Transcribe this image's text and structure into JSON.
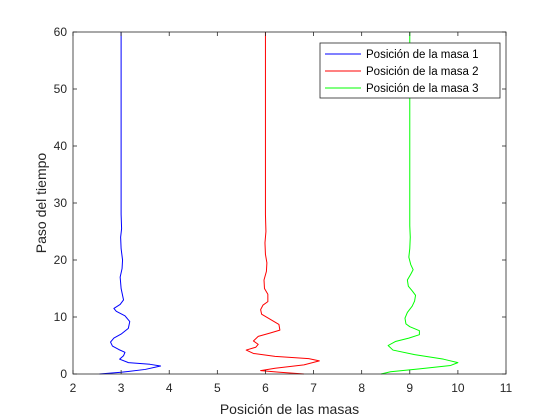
{
  "chart_data": {
    "type": "line",
    "xlabel": "Posición de las masas",
    "ylabel": "Paso del tiempo",
    "xlim": [
      2,
      11
    ],
    "ylim": [
      0,
      60
    ],
    "xticks": [
      2,
      3,
      4,
      5,
      6,
      7,
      8,
      9,
      10,
      11
    ],
    "yticks": [
      0,
      10,
      20,
      30,
      40,
      50,
      60
    ],
    "legend": "top-right",
    "grid": false,
    "series": [
      {
        "name": "Posición de la masa 1",
        "color": "#0000ff",
        "points": [
          [
            2.55,
            0
          ],
          [
            3.0,
            0.3
          ],
          [
            3.5,
            0.8
          ],
          [
            3.82,
            1.4
          ],
          [
            3.6,
            1.7
          ],
          [
            3.15,
            2.0
          ],
          [
            2.97,
            2.6
          ],
          [
            3.05,
            3.2
          ],
          [
            3.08,
            3.8
          ],
          [
            2.95,
            4.3
          ],
          [
            2.82,
            4.9
          ],
          [
            2.78,
            5.6
          ],
          [
            2.85,
            6.3
          ],
          [
            3.0,
            7.0
          ],
          [
            3.15,
            8.0
          ],
          [
            3.18,
            9.2
          ],
          [
            3.08,
            10.2
          ],
          [
            2.9,
            11.0
          ],
          [
            2.85,
            11.5
          ],
          [
            2.98,
            12.2
          ],
          [
            3.05,
            13.0
          ],
          [
            3.0,
            15.0
          ],
          [
            2.98,
            17.0
          ],
          [
            3.02,
            18.5
          ],
          [
            3.03,
            20.0
          ],
          [
            3.0,
            22.0
          ],
          [
            2.99,
            24.0
          ],
          [
            3.01,
            25.5
          ],
          [
            3.0,
            28.0
          ],
          [
            3.0,
            60.0
          ]
        ]
      },
      {
        "name": "Posición de la masa 2",
        "color": "#ff0000",
        "points": [
          [
            6.8,
            0
          ],
          [
            6.3,
            0.3
          ],
          [
            5.9,
            0.6
          ],
          [
            6.2,
            1.0
          ],
          [
            6.8,
            1.6
          ],
          [
            7.12,
            2.3
          ],
          [
            6.9,
            2.7
          ],
          [
            6.2,
            3.1
          ],
          [
            5.75,
            3.6
          ],
          [
            5.6,
            4.2
          ],
          [
            5.8,
            4.7
          ],
          [
            5.85,
            5.2
          ],
          [
            5.75,
            5.8
          ],
          [
            5.85,
            6.6
          ],
          [
            6.1,
            7.2
          ],
          [
            6.3,
            7.7
          ],
          [
            6.28,
            8.7
          ],
          [
            6.1,
            9.6
          ],
          [
            5.92,
            10.5
          ],
          [
            5.9,
            11.3
          ],
          [
            5.95,
            12.1
          ],
          [
            6.05,
            12.7
          ],
          [
            6.05,
            14.0
          ],
          [
            5.98,
            15.0
          ],
          [
            5.97,
            16.5
          ],
          [
            6.02,
            18.0
          ],
          [
            6.03,
            19.5
          ],
          [
            6.0,
            21.0
          ],
          [
            5.99,
            23.0
          ],
          [
            6.01,
            25.0
          ],
          [
            6.0,
            28.0
          ],
          [
            6.0,
            60.0
          ]
        ]
      },
      {
        "name": "Posición de la masa 3",
        "color": "#00ff00",
        "points": [
          [
            8.4,
            0
          ],
          [
            8.6,
            0.4
          ],
          [
            9.2,
            0.9
          ],
          [
            9.85,
            1.5
          ],
          [
            10.0,
            2.0
          ],
          [
            9.7,
            2.6
          ],
          [
            9.1,
            3.4
          ],
          [
            8.65,
            4.2
          ],
          [
            8.55,
            5.0
          ],
          [
            8.7,
            5.7
          ],
          [
            8.98,
            6.3
          ],
          [
            9.2,
            6.9
          ],
          [
            9.2,
            7.6
          ],
          [
            9.0,
            8.3
          ],
          [
            8.92,
            8.8
          ],
          [
            8.9,
            9.8
          ],
          [
            8.95,
            10.8
          ],
          [
            9.05,
            11.9
          ],
          [
            9.1,
            12.8
          ],
          [
            9.12,
            13.8
          ],
          [
            9.05,
            14.6
          ],
          [
            8.97,
            15.4
          ],
          [
            8.95,
            16.5
          ],
          [
            9.02,
            17.5
          ],
          [
            9.07,
            18.3
          ],
          [
            9.02,
            19.2
          ],
          [
            8.98,
            20.5
          ],
          [
            9.0,
            22.0
          ],
          [
            9.01,
            24.0
          ],
          [
            9.0,
            26.0
          ],
          [
            9.0,
            60.0
          ]
        ]
      }
    ]
  }
}
